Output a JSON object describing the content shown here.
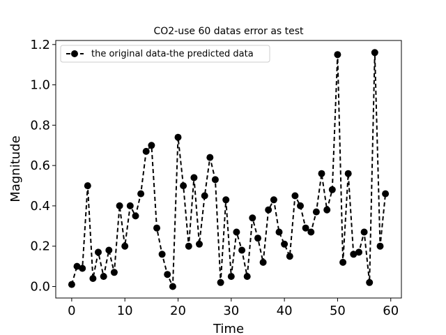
{
  "chart_data": {
    "type": "line",
    "title": "CO2-use 60 datas error as test",
    "xlabel": "Time",
    "ylabel": "Magnitude",
    "xlim": [
      -3,
      62
    ],
    "ylim": [
      -0.057,
      1.22
    ],
    "xticks": [
      0,
      10,
      20,
      30,
      40,
      50,
      60
    ],
    "yticks": [
      0.0,
      0.2,
      0.4,
      0.6,
      0.8,
      1.0,
      1.2
    ],
    "xtick_labels": [
      "0",
      "10",
      "20",
      "30",
      "40",
      "50",
      "60"
    ],
    "ytick_labels": [
      "0.0",
      "0.2",
      "0.4",
      "0.6",
      "0.8",
      "1.0",
      "1.2"
    ],
    "grid": false,
    "legend_position": "top-left",
    "series": [
      {
        "name": "the original data-the predicted data",
        "color": "#000000",
        "line_style": "dashed",
        "marker": "circle",
        "x": [
          0,
          1,
          2,
          3,
          4,
          5,
          6,
          7,
          8,
          9,
          10,
          11,
          12,
          13,
          14,
          15,
          16,
          17,
          18,
          19,
          20,
          21,
          22,
          23,
          24,
          25,
          26,
          27,
          28,
          29,
          30,
          31,
          32,
          33,
          34,
          35,
          36,
          37,
          38,
          39,
          40,
          41,
          42,
          43,
          44,
          45,
          46,
          47,
          48,
          49,
          50,
          51,
          52,
          53,
          54,
          55,
          56,
          57,
          58,
          59
        ],
        "values": [
          0.01,
          0.1,
          0.09,
          0.5,
          0.04,
          0.17,
          0.05,
          0.18,
          0.07,
          0.4,
          0.2,
          0.4,
          0.35,
          0.46,
          0.67,
          0.7,
          0.29,
          0.16,
          0.06,
          0.0,
          0.74,
          0.5,
          0.2,
          0.54,
          0.21,
          0.45,
          0.64,
          0.53,
          0.02,
          0.43,
          0.05,
          0.27,
          0.18,
          0.05,
          0.34,
          0.24,
          0.12,
          0.38,
          0.43,
          0.27,
          0.21,
          0.15,
          0.45,
          0.4,
          0.29,
          0.27,
          0.37,
          0.56,
          0.38,
          0.48,
          1.15,
          0.12,
          0.56,
          0.16,
          0.17,
          0.27,
          0.02,
          1.16,
          0.2,
          0.46
        ]
      }
    ]
  }
}
